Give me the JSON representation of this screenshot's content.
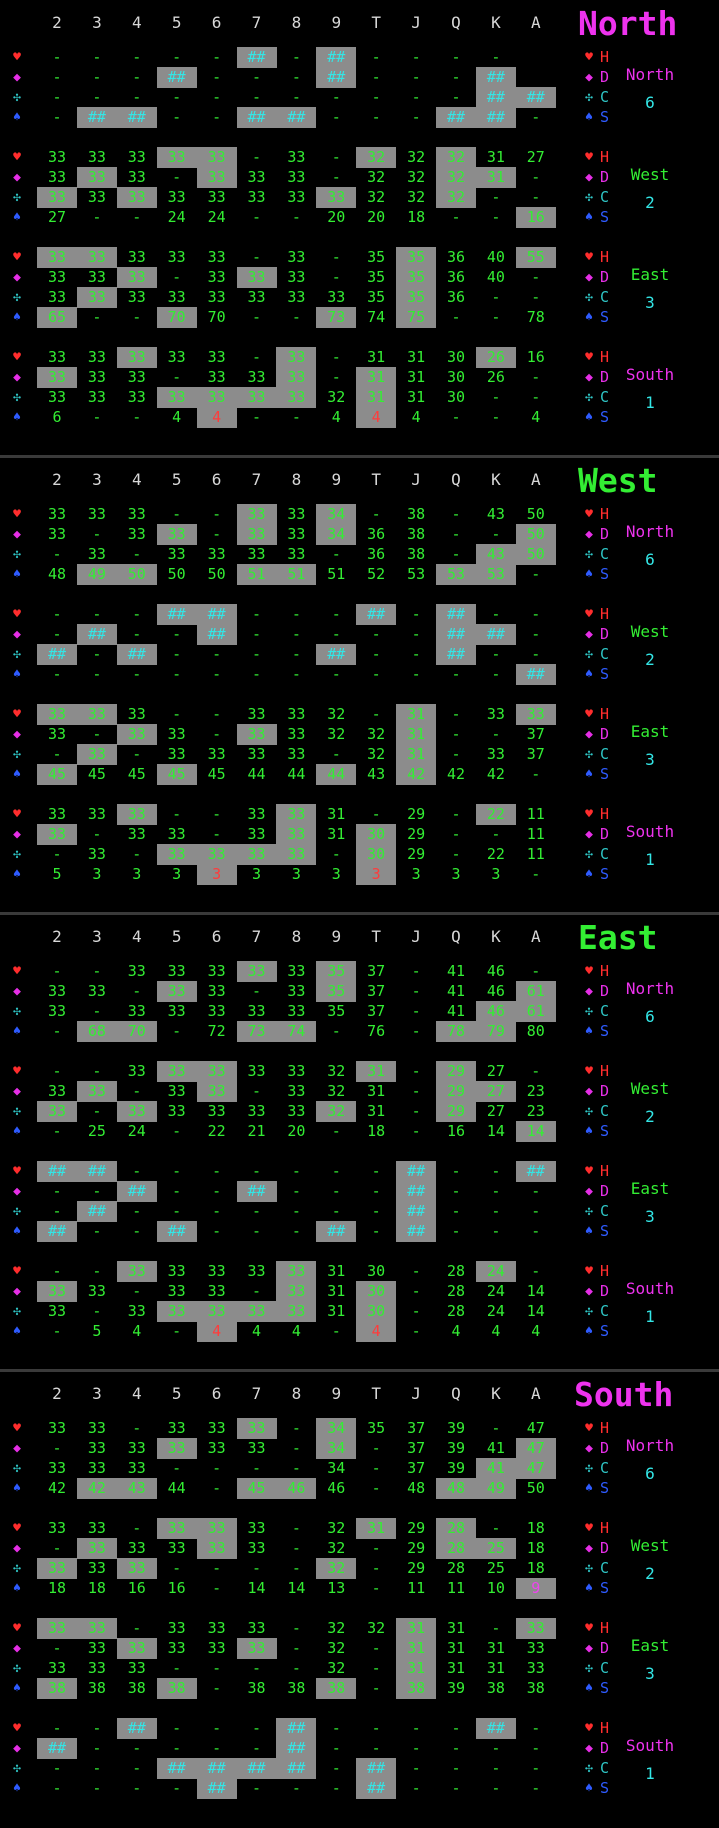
{
  "columns": [
    "2",
    "3",
    "4",
    "5",
    "6",
    "7",
    "8",
    "9",
    "T",
    "J",
    "Q",
    "K",
    "A"
  ],
  "suit_rows": [
    {
      "icon": "heart-icon",
      "glyph": "♥",
      "color": "#ff2d2d",
      "label": "H",
      "label_color": "#ff2d2d"
    },
    {
      "icon": "diamond-icon",
      "glyph": "◆",
      "color": "#e62ee6",
      "label": "D",
      "label_color": "#e62ee6"
    },
    {
      "icon": "club-icon",
      "glyph": "✣",
      "color": "#2ec4c4",
      "label": "C",
      "label_color": "#2ec4c4"
    },
    {
      "icon": "spade-icon",
      "glyph": "♠",
      "color": "#2e5bff",
      "label": "S",
      "label_color": "#2e5bff"
    }
  ],
  "panels": [
    {
      "title": "North",
      "title_color": "#ee33ee",
      "hands": [
        {
          "name": "North",
          "count": "6",
          "color": "#ee33ee",
          "rows": [
            "- - - - - ##* - ##* - - - -",
            "- - - ##* - - - ##* - - - ##*",
            "- - - - - - - - - - - ##* ##*",
            "- ##* ##* - - ##* ##* - - - ##* ##* -"
          ]
        },
        {
          "name": "West",
          "count": "2",
          "color": "#33ee33",
          "rows": [
            "33 33 33 33* 33* - 33 - 32* 32 32* 31 27",
            "33 33* 33 - 33* 33 33 - 32 32 32* 31* -",
            "33* 33 33* 33 33 33 33 33* 32 32 32* - -",
            "27 - - 24 24 - - 20 20 18 - - 16*"
          ]
        },
        {
          "name": "East",
          "count": "3",
          "color": "#33ee33",
          "rows": [
            "33* 33* 33 33 33 - 33 - 35 35* 36 40 55*",
            "33 33 33* - 33 33* 33 - 35 35* 36 40 -",
            "33 33* 33 33 33 33 33 33 35 35* 36 - -",
            "65* - - 70* 70 - - 73* 74 75* - - 78"
          ]
        },
        {
          "name": "South",
          "count": "1",
          "color": "#ee33ee",
          "rows": [
            "33 33 33* 33 33 - 33* - 31 31 30 26* 16",
            "33* 33 33 - 33 33 33* - 31* 31 30 26 -",
            "33 33 33 33* 33* 33* 33* 32 31* 31 30 - -",
            "6 - - 4 4!* - - 4 4!* 4 - - 4"
          ]
        }
      ]
    },
    {
      "title": "West",
      "title_color": "#33ee33",
      "hands": [
        {
          "name": "North",
          "count": "6",
          "color": "#ee33ee",
          "rows": [
            "33 33 33 - - 33* 33 34* - 38 - 43 50",
            "33 - 33 33* - 33* 33 34* 36 38 - - 50*",
            "- 33 - 33 33 33 33 - 36 38 - 43* 50*",
            "48 49* 50* 50 50 51* 51* 51 52 53 53* 53* -"
          ]
        },
        {
          "name": "West",
          "count": "2",
          "color": "#33ee33",
          "rows": [
            "- - - ##* ##* - - - ##* - ##* - -",
            "- ##* - - ##* - - - - - ##* ##* -",
            "##* - ##* - - - - ##* - - ##* - -",
            "- - - - - - - - - - - - ##*"
          ]
        },
        {
          "name": "East",
          "count": "3",
          "color": "#33ee33",
          "rows": [
            "33* 33* 33 - - 33 33 32 - 31* - 33 33*",
            "33 - 33* 33 - 33* 33 32 32 31* - - 37",
            "- 33* - 33 33 33 33 - 32 31* - 33 37",
            "45* 45 45 45* 45 44 44 44* 43 42* 42 42 -"
          ]
        },
        {
          "name": "South",
          "count": "1",
          "color": "#ee33ee",
          "rows": [
            "33 33 33* - - 33 33* 31 - 29 - 22* 11",
            "33* - 33 33 - 33 33* 31 30* 29 - - 11",
            "- 33 - 33* 33* 33* 33* - 30* 29 - 22 11",
            "5 3 3 3 3!* 3 3 3 3!* 3 3 3 -"
          ]
        }
      ]
    },
    {
      "title": "East",
      "title_color": "#33ee33",
      "hands": [
        {
          "name": "North",
          "count": "6",
          "color": "#ee33ee",
          "rows": [
            "- - 33 33 33 33* 33 35* 37 - 41 46 -",
            "33 33 - 33* 33 - 33 35* 37 - 41 46 61*",
            "33 - 33 33 33 33 33 35 37 - 41 46* 61*",
            "- 68* 70* - 72 73* 74* - 76 - 78* 79* 80"
          ]
        },
        {
          "name": "West",
          "count": "2",
          "color": "#33ee33",
          "rows": [
            "- - 33 33* 33* 33 33 32 31* - 29* 27 -",
            "33 33* - 33 33* - 33 32 31 - 29* 27* 23",
            "33* - 33* 33 33 33 33 32* 31 - 29* 27 23",
            "- 25 24 - 22 21 20 - 18 - 16 14 14*"
          ]
        },
        {
          "name": "East",
          "count": "3",
          "color": "#33ee33",
          "rows": [
            "##* ##* - - - - - - - ##* - - ##*",
            "- - ##* - - ##* - - - ##* - - -",
            "- ##* - - - - - - - ##* - - -",
            "##* - - ##* - - - ##* - ##* - - -"
          ]
        },
        {
          "name": "South",
          "count": "1",
          "color": "#ee33ee",
          "rows": [
            "- - 33* 33 33 33 33* 31 30 - 28 24* -",
            "33* 33 - 33 33 - 33* 31 30* - 28 24 14",
            "33 - 33 33* 33* 33* 33* 31 30* - 28 24 14",
            "- 5 4 - 4!* 4 4 - 4!* - 4 4 4"
          ]
        }
      ]
    },
    {
      "title": "South",
      "title_color": "#ee33ee",
      "hands": [
        {
          "name": "North",
          "count": "6",
          "color": "#ee33ee",
          "rows": [
            "33 33 - 33 33 33* - 34* 35 37 39 - 47",
            "- 33 33 33* 33 33 - 34* - 37 39 41 47*",
            "33 33 33 - - - - 34 - 37 39 41* 47*",
            "42 42* 43* 44 - 45* 46* 46 - 48 48* 49* 50"
          ]
        },
        {
          "name": "West",
          "count": "2",
          "color": "#33ee33",
          "rows": [
            "33 33 - 33* 33* 33 - 32 31* 29 28* - 18",
            "- 33* 33 33 33* 33 - 32 - 29 28* 25* 18",
            "33* 33 33* - - - - 32* - 29 28 25 18",
            "18 18 16 16 - 14 14 13 - 11 11 10 9@*"
          ]
        },
        {
          "name": "East",
          "count": "3",
          "color": "#33ee33",
          "rows": [
            "33* 33* - 33 33 33 - 32 32 31* 31 - 33*",
            "- 33 33* 33 33 33* - 32 - 31* 31 31 33",
            "33 33 33 - - - - 32 - 31* 31 31 33",
            "38* 38 38 38* - 38 38 38* - 38* 39 38 38"
          ]
        },
        {
          "name": "South",
          "count": "1",
          "color": "#ee33ee",
          "rows": [
            "- - ##* - - - ##* - - - - ##* -",
            "##* - - - - - ##* - - - - - -",
            "- - - ##* ##* ##* ##* - ##* - - - -",
            "- - - - ##* - - - ##* - - - -"
          ]
        }
      ]
    }
  ]
}
